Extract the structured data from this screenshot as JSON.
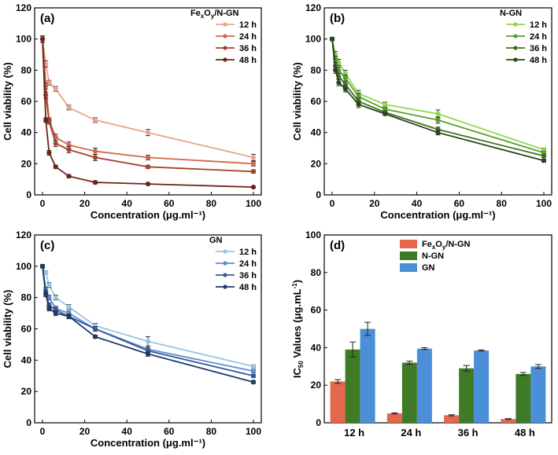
{
  "chart_data": [
    {
      "id": "a",
      "type": "line",
      "panel_label": "(a)",
      "legend_title": "Fe_xO_y/N-GN",
      "legend_title_parts": [
        "Fe",
        "x",
        "O",
        "y",
        "/N-GN"
      ],
      "xlabel": "Concentration (μg.ml⁻¹)",
      "ylabel": "Cell viability (%)",
      "xlim": [
        0,
        100
      ],
      "ylim": [
        0,
        120
      ],
      "xticks": [
        0,
        20,
        40,
        60,
        80,
        100
      ],
      "yticks": [
        0,
        20,
        40,
        60,
        80,
        100,
        120
      ],
      "x": [
        0,
        1.56,
        3.13,
        6.25,
        12.5,
        25,
        50,
        100
      ],
      "series": [
        {
          "name": "12 h",
          "color": "#e9a48c",
          "values": [
            100,
            84,
            72,
            68,
            56,
            48,
            40,
            24
          ],
          "errors": [
            2,
            2,
            1.5,
            1.5,
            1.5,
            1.5,
            2,
            2
          ]
        },
        {
          "name": "24 h",
          "color": "#d2684a",
          "values": [
            100,
            70,
            48,
            37,
            32,
            28,
            24,
            20
          ],
          "errors": [
            2,
            2,
            1.5,
            2,
            2,
            2,
            1.5,
            1.5
          ]
        },
        {
          "name": "36 h",
          "color": "#a5432d",
          "values": [
            100,
            64,
            47,
            33,
            29,
            24,
            18,
            15
          ],
          "errors": [
            2,
            2,
            1.5,
            2,
            2,
            2,
            1,
            1
          ]
        },
        {
          "name": "48 h",
          "color": "#6c2416",
          "values": [
            100,
            48,
            27,
            18,
            12,
            8,
            7,
            5
          ],
          "errors": [
            2,
            1.5,
            1.5,
            1,
            1,
            1,
            0.5,
            0.5
          ]
        }
      ]
    },
    {
      "id": "b",
      "type": "line",
      "panel_label": "(b)",
      "legend_title": "N-GN",
      "xlabel": "Concentration (μg.ml⁻¹)",
      "ylabel": "Cell viability (%)",
      "xlim": [
        0,
        100
      ],
      "ylim": [
        0,
        120
      ],
      "xticks": [
        0,
        20,
        40,
        60,
        80,
        100
      ],
      "yticks": [
        0,
        20,
        40,
        60,
        80,
        100,
        120
      ],
      "x": [
        0,
        1.56,
        3.13,
        6.25,
        12.5,
        25,
        50,
        100
      ],
      "series": [
        {
          "name": "12 h",
          "color": "#8ed94e",
          "values": [
            100,
            90,
            85,
            78,
            65,
            58,
            52,
            29
          ],
          "errors": [
            1,
            2,
            2,
            2,
            2,
            1.5,
            2.5,
            1
          ]
        },
        {
          "name": "24 h",
          "color": "#5c9c2d",
          "values": [
            100,
            87,
            80,
            75,
            63,
            55,
            48,
            27
          ],
          "errors": [
            1,
            2,
            2,
            2,
            2,
            1,
            2,
            1
          ]
        },
        {
          "name": "36 h",
          "color": "#3f7121",
          "values": [
            100,
            83,
            76,
            71,
            60,
            53,
            42,
            25
          ],
          "errors": [
            1,
            2,
            2,
            2,
            2,
            1,
            1.5,
            1
          ]
        },
        {
          "name": "48 h",
          "color": "#27461a",
          "values": [
            100,
            80,
            72,
            68,
            58,
            52,
            40,
            22
          ],
          "errors": [
            1,
            2,
            2,
            2,
            2,
            1,
            1.5,
            1
          ]
        }
      ]
    },
    {
      "id": "c",
      "type": "line",
      "panel_label": "(c)",
      "legend_title": "GN",
      "xlabel": "Concentration (μg.ml⁻¹)",
      "ylabel": "Cell viability (%)",
      "xlim": [
        0,
        100
      ],
      "ylim": [
        0,
        120
      ],
      "xticks": [
        0,
        20,
        40,
        60,
        80,
        100
      ],
      "yticks": [
        0,
        20,
        40,
        60,
        80,
        100,
        120
      ],
      "x": [
        0,
        1.56,
        3.13,
        6.25,
        12.5,
        25,
        50,
        100
      ],
      "series": [
        {
          "name": "12 h",
          "color": "#9cc3e6",
          "values": [
            100,
            96,
            88,
            80,
            74,
            62,
            52,
            36
          ],
          "errors": [
            1,
            1,
            1.5,
            1.5,
            1.5,
            1.5,
            3,
            1
          ]
        },
        {
          "name": "24 h",
          "color": "#5b8ed0",
          "values": [
            100,
            85,
            80,
            73,
            70,
            60,
            47,
            33
          ],
          "errors": [
            1,
            1.5,
            1.5,
            1.5,
            1.5,
            1.5,
            2,
            1
          ]
        },
        {
          "name": "36 h",
          "color": "#34599e",
          "values": [
            100,
            83,
            75,
            72,
            68,
            60,
            46,
            30
          ],
          "errors": [
            1,
            1.5,
            1.5,
            1.5,
            1.5,
            1.5,
            2,
            1
          ]
        },
        {
          "name": "48 h",
          "color": "#1f3a6b",
          "values": [
            100,
            82,
            73,
            70,
            68,
            55,
            44,
            26
          ],
          "errors": [
            1,
            1.5,
            1.5,
            1.5,
            1.5,
            1,
            1.5,
            1
          ]
        }
      ]
    },
    {
      "id": "d",
      "type": "bar",
      "panel_label": "(d)",
      "ylabel": "IC50 Values (μg.mL⁻¹)",
      "ylabel_parts": [
        "IC",
        "50",
        " Values (μg.mL",
        "-1",
        ")"
      ],
      "ylim": [
        0,
        100
      ],
      "yticks": [
        0,
        20,
        40,
        60,
        80,
        100
      ],
      "categories": [
        "12 h",
        "24 h",
        "36 h",
        "48 h"
      ],
      "series": [
        {
          "name": "Fe_xO_y/N-GN",
          "name_parts": [
            "Fe",
            "x",
            "O",
            "y",
            "/N-GN"
          ],
          "color": "#e4684b",
          "values": [
            22,
            5,
            4,
            2
          ],
          "errors": [
            1,
            0.3,
            0.3,
            0.2
          ]
        },
        {
          "name": "N-GN",
          "color": "#3f7a26",
          "values": [
            39,
            32,
            29,
            26
          ],
          "errors": [
            4,
            0.8,
            1.5,
            0.8
          ]
        },
        {
          "name": "GN",
          "color": "#4a8fd8",
          "values": [
            50,
            39.5,
            38.5,
            30
          ],
          "errors": [
            3.5,
            0.5,
            0.3,
            1
          ]
        }
      ]
    }
  ]
}
